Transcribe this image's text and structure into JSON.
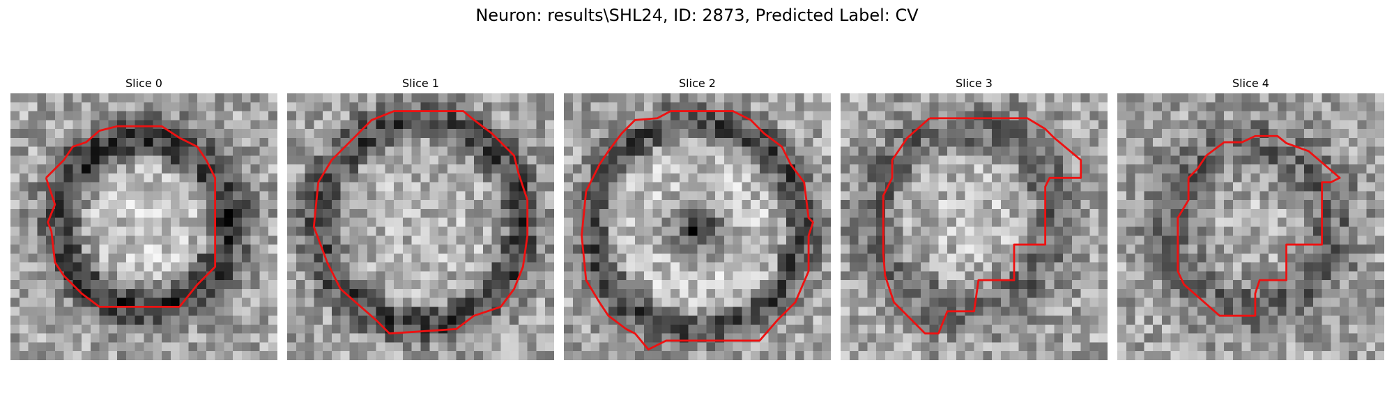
{
  "title": "Neuron: results\\SHL24, ID: 2873, Predicted Label: CV",
  "contour_color": "#ee1111",
  "slices": [
    {
      "label": "Slice 0",
      "pattern": "ring"
    },
    {
      "label": "Slice 1",
      "pattern": "ring"
    },
    {
      "label": "Slice 2",
      "pattern": "ring-dark-center"
    },
    {
      "label": "Slice 3",
      "pattern": "blob"
    },
    {
      "label": "Slice 4",
      "pattern": "blob"
    }
  ]
}
